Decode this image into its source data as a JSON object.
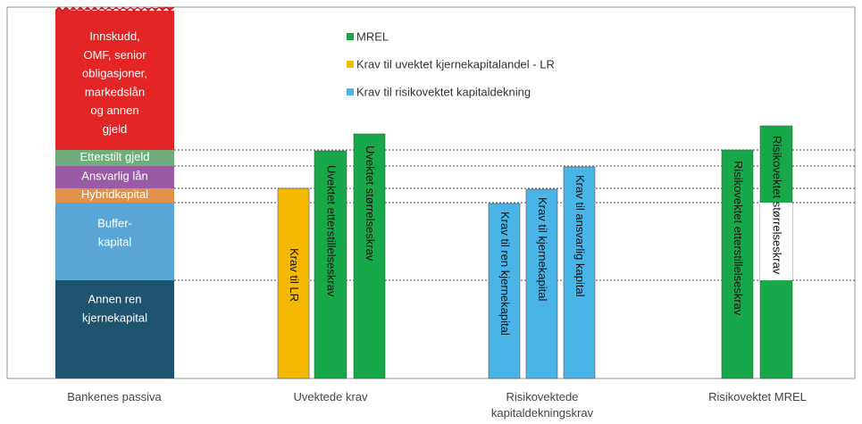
{
  "stack": {
    "layers": [
      "Innskudd,\nOMF, senior\nobligasjoner,\nmarkedslån\nog annen\ngjeld",
      "Etterstilt gjeld",
      "Ansvarlig lån",
      "Hybridkapital",
      "Buffer-\nkapital",
      "Annen ren\nkjernekapital"
    ]
  },
  "legend": [
    "MREL",
    "Krav til uvektet kjernekapitalandel - LR",
    "Krav til risikovektet kapitaldekning"
  ],
  "bars": [
    "Krav til LR",
    "Uvektet etterstillelseskrav",
    "Uvektet størrelseskrav",
    "Krav til ren kjernekapital",
    "Krav til kjernekapital",
    "Krav til ansvarlig kapital",
    "Risikovektet etterstillelseskrav",
    "Risikovektet størrelseskrav"
  ],
  "groups": [
    "Bankenes passiva",
    "Uvektede krav",
    "Risikovektede\nkapitaldekningskrav",
    "Risikovektet MREL"
  ]
}
